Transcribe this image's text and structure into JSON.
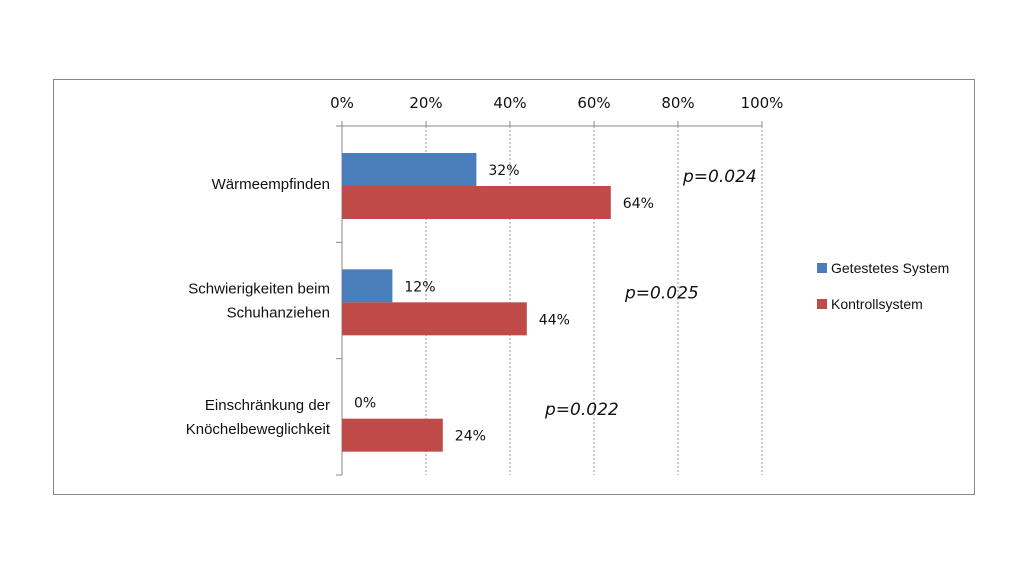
{
  "chart_data": {
    "type": "bar",
    "orientation": "horizontal",
    "categories": [
      "Wärmeempfinden",
      "Schwierigkeiten beim Schuhanziehen",
      "Einschränkung der Knöchelbeweglichkeit"
    ],
    "category_lines": [
      [
        "Wärmeempfinden"
      ],
      [
        "Schwierigkeiten beim",
        "Schuhanziehen"
      ],
      [
        "Einschränkung der",
        "Knöchelbeweglichkeit"
      ]
    ],
    "series": [
      {
        "name": "Getestetes System",
        "values": [
          32,
          12,
          0
        ],
        "labels": [
          "32%",
          "12%",
          "0%"
        ],
        "color": "#4a7ebb"
      },
      {
        "name": "Kontrollsystem",
        "values": [
          64,
          44,
          24
        ],
        "labels": [
          "64%",
          "44%",
          "24%"
        ],
        "color": "#be4b48"
      }
    ],
    "annotations": [
      "p=0.024",
      "p=0.025",
      "p=0.022"
    ],
    "xlim": [
      0,
      100
    ],
    "xticks": [
      "0%",
      "20%",
      "40%",
      "60%",
      "80%",
      "100%"
    ],
    "xaxis_position": "top",
    "grid": "vertical dotted",
    "legend": "right",
    "title": "",
    "xlabel": "",
    "ylabel": ""
  }
}
